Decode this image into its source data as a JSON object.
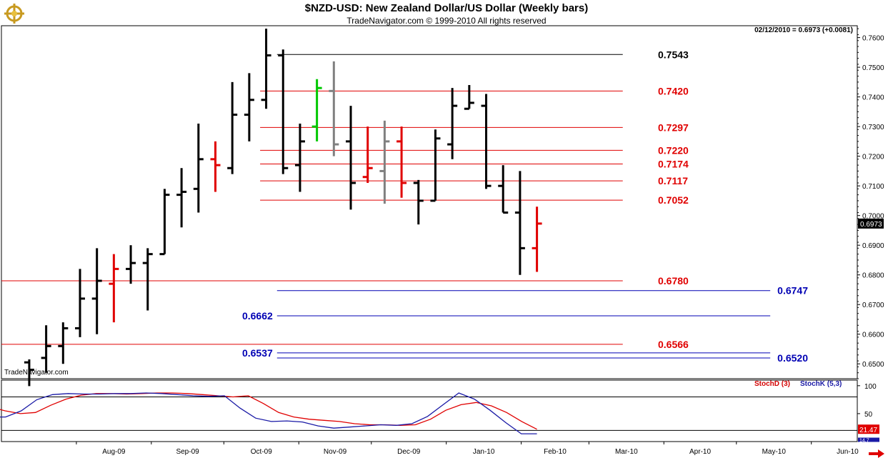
{
  "chart_data": [
    {
      "type": "ohlc",
      "title": "$NZD-USD:  New Zealand Dollar/US Dollar  (Weekly bars)",
      "subtitle": "TradeNavigator.com © 1999-2010 All rights reserved",
      "last_info": "02/12/2010 = 0.6973 (+0.0081)",
      "watermark": "TradeNavigator.com",
      "last_price_label": "0.6973",
      "ylim": [
        0.645,
        0.764
      ],
      "y_ticks": [
        "0.6500",
        "0.6600",
        "0.6700",
        "0.6800",
        "0.6900",
        "0.7000",
        "0.7100",
        "0.7200",
        "0.7300",
        "0.7400",
        "0.7500",
        "0.7600"
      ],
      "x_ticks": [
        "Aug-09",
        "Sep-09",
        "Oct-09",
        "Nov-09",
        "Dec-09",
        "Jan-10",
        "Feb-10",
        "Mar-10",
        "Apr-10",
        "May-10",
        "Jun-10"
      ],
      "colors": {
        "up": "#000000",
        "down_reversal": "#e00000",
        "inside": "#808080",
        "green": "#00c800",
        "level_red": "#e00000",
        "level_blue": "#0000b4"
      },
      "bars": [
        {
          "week": "2009-07-10",
          "o": 0.6505,
          "h": 0.6515,
          "l": 0.6425,
          "c": 0.648,
          "color": "black"
        },
        {
          "week": "2009-07-17",
          "o": 0.652,
          "h": 0.663,
          "l": 0.647,
          "c": 0.656,
          "color": "black"
        },
        {
          "week": "2009-07-24",
          "o": 0.656,
          "h": 0.664,
          "l": 0.65,
          "c": 0.662,
          "color": "black"
        },
        {
          "week": "2009-07-31",
          "o": 0.662,
          "h": 0.682,
          "l": 0.659,
          "c": 0.672,
          "color": "black"
        },
        {
          "week": "2009-08-07",
          "o": 0.672,
          "h": 0.689,
          "l": 0.66,
          "c": 0.678,
          "color": "black"
        },
        {
          "week": "2009-08-14",
          "o": 0.677,
          "h": 0.687,
          "l": 0.664,
          "c": 0.682,
          "color": "red"
        },
        {
          "week": "2009-08-21",
          "o": 0.682,
          "h": 0.69,
          "l": 0.677,
          "c": 0.684,
          "color": "black"
        },
        {
          "week": "2009-08-28",
          "o": 0.684,
          "h": 0.689,
          "l": 0.668,
          "c": 0.687,
          "color": "black"
        },
        {
          "week": "2009-09-04",
          "o": 0.687,
          "h": 0.709,
          "l": 0.687,
          "c": 0.707,
          "color": "black"
        },
        {
          "week": "2009-09-11",
          "o": 0.707,
          "h": 0.716,
          "l": 0.696,
          "c": 0.708,
          "color": "black"
        },
        {
          "week": "2009-09-18",
          "o": 0.709,
          "h": 0.731,
          "l": 0.701,
          "c": 0.719,
          "color": "black"
        },
        {
          "week": "2009-09-25",
          "o": 0.719,
          "h": 0.725,
          "l": 0.708,
          "c": 0.717,
          "color": "red"
        },
        {
          "week": "2009-10-02",
          "o": 0.716,
          "h": 0.745,
          "l": 0.714,
          "c": 0.734,
          "color": "black"
        },
        {
          "week": "2009-10-09",
          "o": 0.734,
          "h": 0.748,
          "l": 0.725,
          "c": 0.739,
          "color": "black"
        },
        {
          "week": "2009-10-16",
          "o": 0.739,
          "h": 0.763,
          "l": 0.736,
          "c": 0.754,
          "color": "black"
        },
        {
          "week": "2009-10-23",
          "o": 0.754,
          "h": 0.756,
          "l": 0.714,
          "c": 0.716,
          "color": "black"
        },
        {
          "week": "2009-10-30",
          "o": 0.717,
          "h": 0.731,
          "l": 0.708,
          "c": 0.725,
          "color": "black"
        },
        {
          "week": "2009-11-06",
          "o": 0.73,
          "h": 0.746,
          "l": 0.725,
          "c": 0.743,
          "color": "green"
        },
        {
          "week": "2009-11-13",
          "o": 0.742,
          "h": 0.752,
          "l": 0.72,
          "c": 0.724,
          "color": "gray"
        },
        {
          "week": "2009-11-20",
          "o": 0.725,
          "h": 0.737,
          "l": 0.702,
          "c": 0.711,
          "color": "black"
        },
        {
          "week": "2009-11-27",
          "o": 0.713,
          "h": 0.73,
          "l": 0.711,
          "c": 0.716,
          "color": "red"
        },
        {
          "week": "2009-12-04",
          "o": 0.715,
          "h": 0.732,
          "l": 0.704,
          "c": 0.725,
          "color": "gray"
        },
        {
          "week": "2009-12-11",
          "o": 0.725,
          "h": 0.73,
          "l": 0.706,
          "c": 0.711,
          "color": "red"
        },
        {
          "week": "2009-12-18",
          "o": 0.711,
          "h": 0.712,
          "l": 0.697,
          "c": 0.705,
          "color": "black"
        },
        {
          "week": "2009-12-25",
          "o": 0.705,
          "h": 0.729,
          "l": 0.705,
          "c": 0.726,
          "color": "black"
        },
        {
          "week": "2010-01-01",
          "o": 0.724,
          "h": 0.743,
          "l": 0.719,
          "c": 0.737,
          "color": "black"
        },
        {
          "week": "2010-01-08",
          "o": 0.736,
          "h": 0.744,
          "l": 0.736,
          "c": 0.738,
          "color": "black"
        },
        {
          "week": "2010-01-15",
          "o": 0.737,
          "h": 0.741,
          "l": 0.709,
          "c": 0.71,
          "color": "black"
        },
        {
          "week": "2010-01-22",
          "o": 0.71,
          "h": 0.717,
          "l": 0.701,
          "c": 0.701,
          "color": "black"
        },
        {
          "week": "2010-01-29",
          "o": 0.701,
          "h": 0.715,
          "l": 0.68,
          "c": 0.689,
          "color": "black"
        },
        {
          "week": "2010-02-05",
          "o": 0.689,
          "h": 0.703,
          "l": 0.681,
          "c": 0.6973,
          "color": "red"
        }
      ],
      "levels": [
        {
          "value": 0.7543,
          "label": "0.7543",
          "color": "black",
          "start": "2009-10-23",
          "end": "2010-03-15",
          "label_side": "right"
        },
        {
          "value": 0.742,
          "label": "0.7420",
          "color": "red",
          "start": "2009-10-16",
          "end": "2010-03-15",
          "label_side": "right"
        },
        {
          "value": 0.7297,
          "label": "0.7297",
          "color": "red",
          "start": "2009-10-16",
          "end": "2010-03-15",
          "label_side": "right"
        },
        {
          "value": 0.722,
          "label": "0.7220",
          "color": "red",
          "start": "2009-10-16",
          "end": "2010-03-15",
          "label_side": "right"
        },
        {
          "value": 0.7174,
          "label": "0.7174",
          "color": "red",
          "start": "2009-10-16",
          "end": "2010-03-15",
          "label_side": "right"
        },
        {
          "value": 0.7117,
          "label": "0.7117",
          "color": "red",
          "start": "2009-10-16",
          "end": "2010-03-15",
          "label_side": "right"
        },
        {
          "value": 0.7052,
          "label": "0.7052",
          "color": "red",
          "start": "2009-10-16",
          "end": "2010-03-15",
          "label_side": "right"
        },
        {
          "value": 0.678,
          "label": "0.6780",
          "color": "red",
          "start": "2009-07-01",
          "end": "2010-03-15",
          "label_side": "right"
        },
        {
          "value": 0.6747,
          "label": "0.6747",
          "color": "blue",
          "start": "2009-10-23",
          "end": "2010-05-15",
          "label_side": "right"
        },
        {
          "value": 0.6662,
          "label": "0.6662",
          "color": "blue",
          "start": "2009-10-23",
          "end": "2010-05-15",
          "label_side": "left"
        },
        {
          "value": 0.6566,
          "label": "0.6566",
          "color": "red",
          "start": "2009-07-01",
          "end": "2010-03-15",
          "label_side": "right"
        },
        {
          "value": 0.6537,
          "label": "0.6537",
          "color": "blue",
          "start": "2009-10-23",
          "end": "2010-05-15",
          "label_side": "left"
        },
        {
          "value": 0.652,
          "label": "0.6520",
          "color": "blue",
          "start": "2009-10-23",
          "end": "2010-05-15",
          "label_side": "right"
        }
      ],
      "x_range": [
        "2009-07-01",
        "2010-06-20"
      ]
    },
    {
      "type": "line",
      "indicator_d_label": "StochD (3)",
      "indicator_k_label": "StochK (5,3)",
      "ylim": [
        0,
        110
      ],
      "y_ticks": [
        "100",
        "50"
      ],
      "guide_lines": [
        80,
        20
      ],
      "value_labels": {
        "k": "14.7",
        "d": "21.47"
      },
      "series": [
        {
          "name": "StochD (3)",
          "color": "#e00000",
          "values": [
            62,
            55,
            50,
            52,
            65,
            76,
            83,
            86,
            86,
            85,
            86,
            87,
            87,
            86,
            84,
            82,
            80,
            82,
            68,
            52,
            44,
            40,
            38,
            36,
            32,
            30,
            30,
            29,
            30,
            40,
            56,
            66,
            70,
            64,
            52,
            36,
            22
          ]
        },
        {
          "name": "StochK (5,3)",
          "color": "#1a1aa6",
          "values": [
            44,
            44,
            55,
            75,
            84,
            86,
            85,
            85,
            86,
            86,
            87,
            86,
            84,
            82,
            81,
            82,
            60,
            42,
            36,
            37,
            35,
            28,
            24,
            26,
            28,
            30,
            29,
            32,
            45,
            66,
            87,
            76,
            56,
            34,
            14,
            14
          ]
        }
      ]
    }
  ]
}
